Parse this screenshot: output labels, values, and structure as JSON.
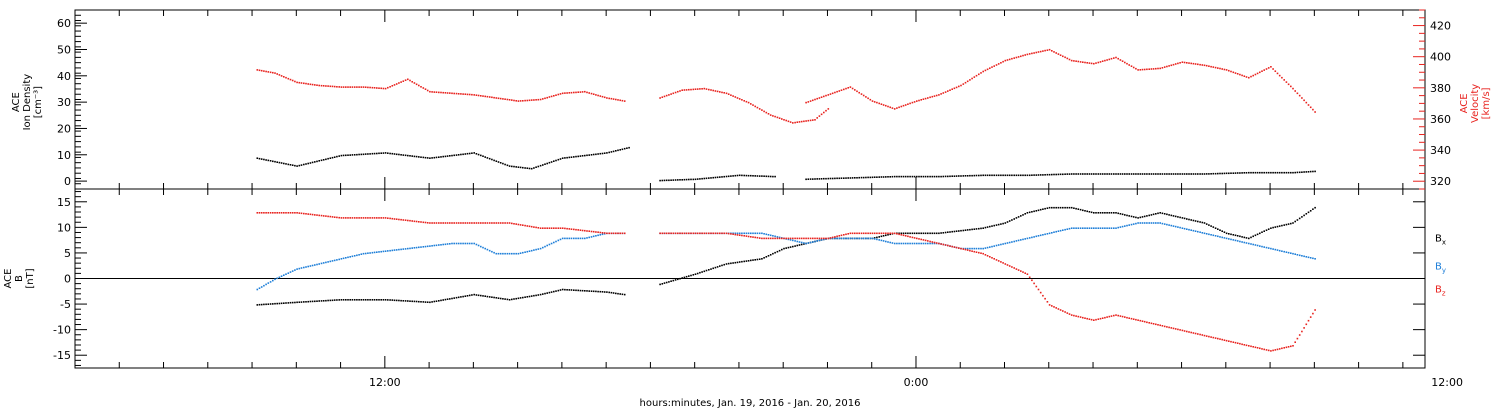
{
  "colors": {
    "density": "#000000",
    "velocity": "#e8231f",
    "bx": "#000000",
    "by": "#1f7fd8",
    "bz": "#e8231f",
    "axis": "#000000"
  },
  "footer": {
    "xlabel": "hours:minutes, Jan. 19, 2016 - Jan. 20, 2016"
  },
  "chart_data": [
    {
      "type": "scatter",
      "panel": "top",
      "y_left_label": [
        "ACE",
        "Ion Density",
        "[cm⁻³]"
      ],
      "y_right_label": [
        "ACE",
        "Velocity",
        "[km/s]"
      ],
      "x_range_hours": [
        5.0,
        35.5
      ],
      "x_ticks": [
        {
          "hour": 12,
          "label": "12:00"
        },
        {
          "hour": 24,
          "label": "0:00"
        },
        {
          "hour": 36,
          "label": "12:00"
        }
      ],
      "ylim_left": [
        -3,
        65
      ],
      "ylim_right": [
        315,
        430
      ],
      "yticks_left": [
        0,
        10,
        20,
        30,
        40,
        50,
        60
      ],
      "yticks_right": [
        320,
        340,
        360,
        380,
        400,
        420
      ],
      "series": [
        {
          "color": "black",
          "axis": "left",
          "segments": [
            {
              "x": [
                9.1,
                10.0,
                11.0,
                12.0,
                13.0,
                14.0,
                14.8,
                15.3,
                16.0,
                17.0,
                17.5
              ],
              "y": [
                9,
                6,
                10,
                11,
                9,
                11,
                6,
                5,
                9,
                11,
                13
              ]
            },
            {
              "x": [
                21.5,
                22.5,
                23.5,
                24.5,
                25.5,
                26.5,
                27.5,
                28.5,
                29.5,
                30.5,
                31.5,
                32.5,
                33.0
              ],
              "y": [
                1,
                1.5,
                2,
                2,
                2.5,
                2.5,
                3,
                3,
                3,
                3,
                3.5,
                3.5,
                4
              ]
            },
            {
              "x": [
                18.2,
                19.0,
                20.0,
                20.8
              ],
              "y": [
                0.5,
                1,
                2.5,
                2
              ]
            }
          ]
        },
        {
          "color": "red",
          "axis": "right",
          "segments": [
            {
              "x": [
                9.1,
                9.5,
                10.0,
                10.5,
                11.0,
                11.5,
                12.0,
                12.5,
                13.0,
                13.5,
                14.0,
                14.5,
                15.0,
                15.5,
                16.0,
                16.5,
                17.0,
                17.4
              ],
              "y": [
                392,
                390,
                384,
                382,
                381,
                381,
                380,
                386,
                378,
                377,
                376,
                374,
                372,
                373,
                377,
                378,
                374,
                372
              ]
            },
            {
              "x": [
                18.2,
                18.7,
                19.2,
                19.7,
                20.2,
                20.7,
                21.2,
                21.7,
                22.0
              ],
              "y": [
                374,
                379,
                380,
                377,
                371,
                363,
                358,
                360,
                367
              ]
            },
            {
              "x": [
                21.5,
                22.0,
                22.5,
                23.0,
                23.5,
                24.0,
                24.5,
                25.0,
                25.5,
                26.0,
                26.5,
                27.0,
                27.5,
                28.0,
                28.5,
                29.0,
                29.5,
                30.0,
                30.5,
                31.0,
                31.5,
                32.0,
                32.5,
                33.0
              ],
              "y": [
                371,
                376,
                381,
                372,
                367,
                372,
                376,
                382,
                391,
                398,
                402,
                405,
                398,
                396,
                400,
                392,
                393,
                397,
                395,
                392,
                387,
                394,
                380,
                365
              ]
            }
          ]
        }
      ]
    },
    {
      "type": "scatter",
      "panel": "bottom",
      "y_left_label": [
        "ACE",
        "B",
        "[nT]"
      ],
      "x_range_hours": [
        5.0,
        35.5
      ],
      "ylim": [
        -17.5,
        17.5
      ],
      "yticks": [
        -15,
        -10,
        -5,
        0,
        5,
        10,
        15
      ],
      "legend": [
        {
          "text": "B",
          "sub": "x",
          "color": "black"
        },
        {
          "text": "B",
          "sub": "y",
          "color": "blue"
        },
        {
          "text": "B",
          "sub": "z",
          "color": "red"
        }
      ],
      "series": [
        {
          "name": "Bx",
          "color": "black",
          "segments": [
            {
              "x": [
                9.1,
                10.0,
                11.0,
                12.0,
                13.0,
                14.0,
                14.8,
                15.5,
                16.0,
                17.0,
                17.4
              ],
              "y": [
                -5,
                -4.5,
                -4,
                -4,
                -4.5,
                -3,
                -4,
                -3,
                -2,
                -2.5,
                -3
              ]
            },
            {
              "x": [
                18.2,
                19.0,
                19.7,
                20.5,
                21.0,
                21.5,
                22.0,
                22.5,
                23.0,
                23.5,
                24.0,
                24.5,
                25.0,
                25.5,
                26.0,
                26.5,
                27.0,
                27.5,
                28.0,
                28.5,
                29.0,
                29.5,
                30.0,
                30.5,
                31.0,
                31.5,
                32.0,
                32.5,
                33.0
              ],
              "y": [
                -1,
                1,
                3,
                4,
                6,
                7,
                8,
                8,
                8,
                9,
                9,
                9,
                9.5,
                10,
                11,
                13,
                14,
                14,
                13,
                13,
                12,
                13,
                12,
                11,
                9,
                8,
                10,
                11,
                14
              ]
            }
          ]
        },
        {
          "name": "By",
          "color": "blue",
          "segments": [
            {
              "x": [
                9.1,
                9.5,
                10.0,
                10.5,
                11.0,
                11.5,
                12.0,
                12.5,
                13.0,
                13.5,
                14.0,
                14.5,
                15.0,
                15.5,
                16.0,
                16.5,
                17.0,
                17.4
              ],
              "y": [
                -2,
                0,
                2,
                3,
                4,
                5,
                5.5,
                6,
                6.5,
                7,
                7,
                5,
                5,
                6,
                8,
                8,
                9,
                9
              ]
            },
            {
              "x": [
                18.2,
                19.0,
                19.7,
                20.5,
                21.0,
                21.5,
                22.0,
                22.5,
                23.0,
                23.5,
                24.0,
                24.5,
                25.0,
                25.5,
                26.0,
                26.5,
                27.0,
                27.5,
                28.0,
                28.5,
                29.0,
                29.5,
                30.0,
                30.5,
                31.0,
                31.5,
                32.0,
                32.5,
                33.0
              ],
              "y": [
                9,
                9,
                9,
                9,
                8,
                7,
                8,
                8,
                8,
                7,
                7,
                7,
                6,
                6,
                7,
                8,
                9,
                10,
                10,
                10,
                11,
                11,
                10,
                9,
                8,
                7,
                6,
                5,
                4
              ]
            }
          ]
        },
        {
          "name": "Bz",
          "color": "red",
          "segments": [
            {
              "x": [
                9.1,
                10.0,
                11.0,
                12.0,
                13.0,
                14.0,
                14.8,
                15.5,
                16.0,
                17.0,
                17.4
              ],
              "y": [
                13,
                13,
                12,
                12,
                11,
                11,
                11,
                10,
                10,
                9,
                9
              ]
            },
            {
              "x": [
                18.2,
                19.0,
                19.7,
                20.5,
                21.0,
                21.5,
                22.0,
                22.5,
                23.0,
                23.5,
                24.0,
                24.5,
                25.0,
                25.5,
                26.0,
                26.5,
                27.0,
                27.5,
                28.0,
                28.5,
                29.0,
                29.5,
                30.0,
                30.5,
                31.0,
                31.5,
                32.0,
                32.5,
                33.0
              ],
              "y": [
                9,
                9,
                9,
                8,
                8,
                8,
                8,
                9,
                9,
                9,
                8,
                7,
                6,
                5,
                3,
                1,
                -5,
                -7,
                -8,
                -7,
                -8,
                -9,
                -10,
                -11,
                -12,
                -13,
                -14,
                -13,
                -6
              ]
            }
          ]
        }
      ]
    }
  ]
}
